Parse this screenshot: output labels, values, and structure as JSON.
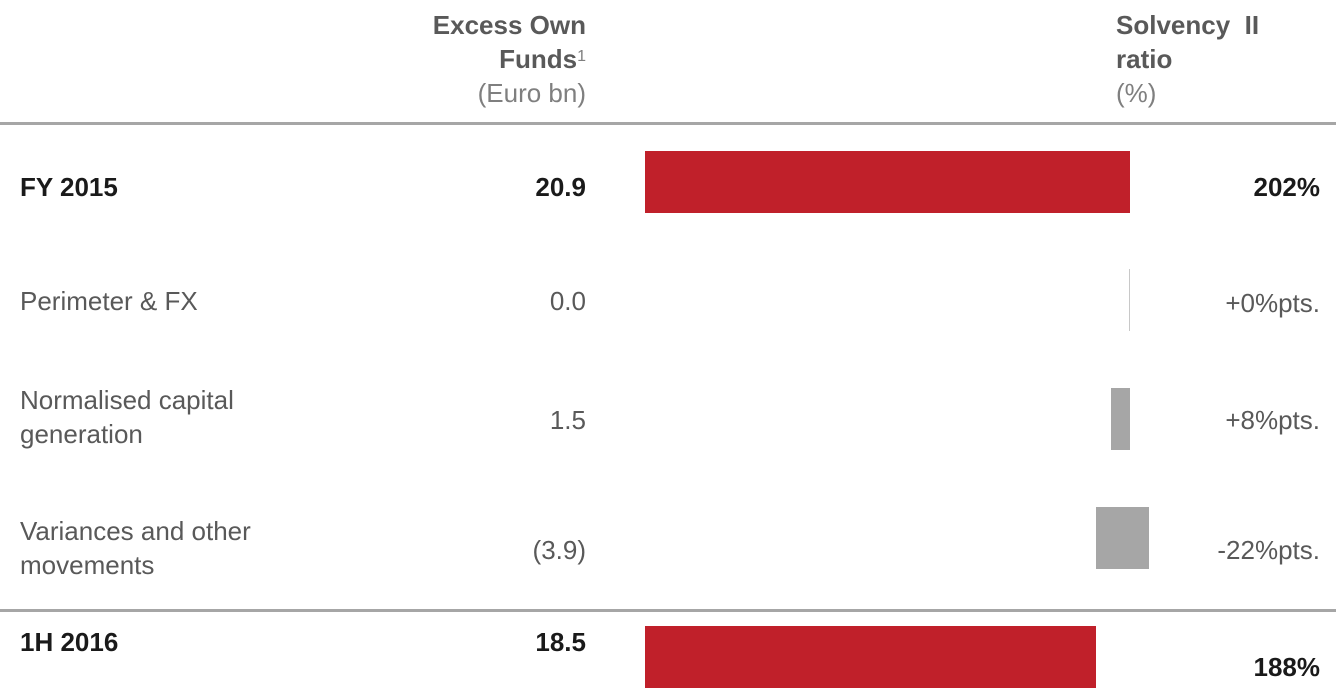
{
  "header": {
    "col_left_line1": "Excess Own",
    "col_left_line2": "Funds",
    "col_left_sup": "1",
    "col_left_unit": "(Euro bn)",
    "col_right_line1": "Solvency  II",
    "col_right_line2": "ratio",
    "col_right_unit": "(%)"
  },
  "colors": {
    "total": "#c0202a",
    "delta": "#a6a6a6",
    "rule": "#a6a6a6"
  },
  "chart_data": {
    "type": "waterfall",
    "title": "",
    "xlabel": "",
    "ylabel": "",
    "ratio_range": [
      0,
      215
    ],
    "rows": [
      {
        "label": "FY 2015",
        "funds": "20.9",
        "ratio_label": "202%",
        "ratio_value": 202,
        "kind": "total",
        "bold": true
      },
      {
        "label": "Perimeter & FX",
        "funds": "0.0",
        "ratio_label": "+0%pts.",
        "ratio_value": 0,
        "kind": "delta",
        "bold": false
      },
      {
        "label": "Normalised capital generation",
        "funds": "1.5",
        "ratio_label": "+8%pts.",
        "ratio_value": 8,
        "kind": "delta",
        "bold": false
      },
      {
        "label": "Variances and other movements",
        "funds": "(3.9)",
        "ratio_label": "-22%pts.",
        "ratio_value": -22,
        "kind": "delta",
        "bold": false
      },
      {
        "label": "1H 2016",
        "funds": "18.5",
        "ratio_label": "188%",
        "ratio_value": 188,
        "kind": "total",
        "bold": true
      }
    ]
  }
}
